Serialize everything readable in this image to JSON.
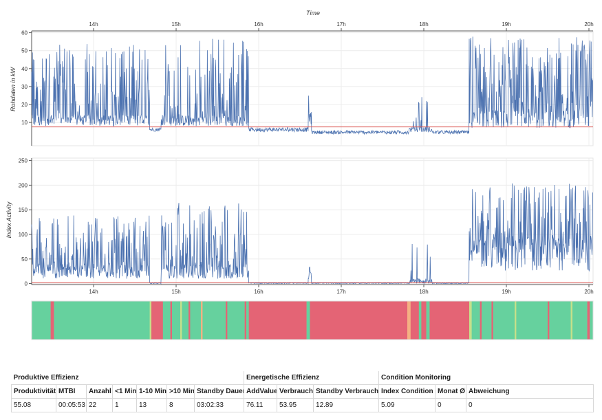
{
  "chart_data": [
    {
      "type": "line",
      "title": "",
      "xlabel": "Time",
      "ylabel": "Rohdaten in kW",
      "x_ticks": [
        "14h",
        "15h",
        "16h",
        "17h",
        "18h",
        "19h",
        "20h"
      ],
      "x_range_hours": [
        13.25,
        20.05
      ],
      "ylim": [
        -3,
        61
      ],
      "y_ticks": [
        10,
        20,
        30,
        40,
        50,
        60
      ],
      "grid": true,
      "line_color": "#4c72b0",
      "threshold": {
        "value": 7.5,
        "color": "#d9534f"
      },
      "segments": [
        {
          "start": 13.25,
          "end": 14.68,
          "base": 11,
          "noise": 3,
          "spike_rate": 0.45,
          "spike_max": 54
        },
        {
          "start": 14.68,
          "end": 14.82,
          "base": 6,
          "noise": 1,
          "spike_rate": 0.02,
          "spike_max": 8
        },
        {
          "start": 14.82,
          "end": 15.88,
          "base": 11,
          "noise": 3,
          "spike_rate": 0.4,
          "spike_max": 58
        },
        {
          "start": 15.88,
          "end": 16.6,
          "base": 6,
          "noise": 1.2,
          "spike_rate": 0.01,
          "spike_max": 8
        },
        {
          "start": 16.6,
          "end": 16.64,
          "base": 12,
          "noise": 4,
          "spike_rate": 0.4,
          "spike_max": 25
        },
        {
          "start": 16.64,
          "end": 17.82,
          "base": 4.5,
          "noise": 1,
          "spike_rate": 0.005,
          "spike_max": 6
        },
        {
          "start": 17.82,
          "end": 18.1,
          "base": 6,
          "noise": 1.5,
          "spike_rate": 0.12,
          "spike_max": 27
        },
        {
          "start": 18.1,
          "end": 18.55,
          "base": 4.5,
          "noise": 1,
          "spike_rate": 0.005,
          "spike_max": 6
        },
        {
          "start": 18.55,
          "end": 20.05,
          "base": 12,
          "noise": 5,
          "spike_rate": 0.55,
          "spike_max": 58
        }
      ]
    },
    {
      "type": "line",
      "title": "",
      "xlabel": "",
      "ylabel": "Index Activity",
      "x_ticks": [
        "14h",
        "15h",
        "16h",
        "17h",
        "18h",
        "19h",
        "20h"
      ],
      "x_range_hours": [
        13.25,
        20.05
      ],
      "ylim": [
        -2,
        255
      ],
      "y_ticks": [
        0,
        50,
        100,
        150,
        200,
        250
      ],
      "grid": true,
      "line_color": "#4c72b0",
      "threshold": {
        "value": 2,
        "color": "#d9534f"
      },
      "segments": [
        {
          "start": 13.25,
          "end": 14.68,
          "base": 25,
          "noise": 15,
          "spike_rate": 0.4,
          "spike_max": 140
        },
        {
          "start": 14.68,
          "end": 14.82,
          "base": 1,
          "noise": 1,
          "spike_rate": 0.0,
          "spike_max": 2
        },
        {
          "start": 14.82,
          "end": 15.88,
          "base": 25,
          "noise": 15,
          "spike_rate": 0.35,
          "spike_max": 165
        },
        {
          "start": 15.88,
          "end": 16.6,
          "base": 1,
          "noise": 1,
          "spike_rate": 0.0,
          "spike_max": 2
        },
        {
          "start": 16.6,
          "end": 16.64,
          "base": 10,
          "noise": 8,
          "spike_rate": 0.5,
          "spike_max": 55
        },
        {
          "start": 16.64,
          "end": 17.82,
          "base": 1,
          "noise": 1,
          "spike_rate": 0.0,
          "spike_max": 2
        },
        {
          "start": 17.82,
          "end": 18.1,
          "base": 5,
          "noise": 5,
          "spike_rate": 0.15,
          "spike_max": 85
        },
        {
          "start": 18.1,
          "end": 18.55,
          "base": 1,
          "noise": 1,
          "spike_rate": 0.0,
          "spike_max": 2
        },
        {
          "start": 18.55,
          "end": 20.05,
          "base": 60,
          "noise": 35,
          "spike_rate": 0.45,
          "spike_max": 205
        }
      ]
    },
    {
      "type": "heatmap",
      "title": "",
      "x_range_hours": [
        13.25,
        20.05
      ],
      "colors": {
        "active": "#66d19e",
        "idle": "#e46475",
        "transition": "#f4b183",
        "marginal": "#c6e08a"
      },
      "bands": [
        {
          "start": 13.25,
          "end": 13.48,
          "state": "active"
        },
        {
          "start": 13.48,
          "end": 13.52,
          "state": "idle"
        },
        {
          "start": 13.52,
          "end": 14.68,
          "state": "active"
        },
        {
          "start": 14.68,
          "end": 14.7,
          "state": "marginal"
        },
        {
          "start": 14.7,
          "end": 14.84,
          "state": "idle"
        },
        {
          "start": 14.84,
          "end": 14.93,
          "state": "active"
        },
        {
          "start": 14.93,
          "end": 14.95,
          "state": "idle"
        },
        {
          "start": 14.95,
          "end": 15.05,
          "state": "active"
        },
        {
          "start": 15.05,
          "end": 15.07,
          "state": "marginal"
        },
        {
          "start": 15.07,
          "end": 15.15,
          "state": "active"
        },
        {
          "start": 15.15,
          "end": 15.17,
          "state": "idle"
        },
        {
          "start": 15.17,
          "end": 15.3,
          "state": "active"
        },
        {
          "start": 15.3,
          "end": 15.32,
          "state": "transition"
        },
        {
          "start": 15.32,
          "end": 15.6,
          "state": "active"
        },
        {
          "start": 15.6,
          "end": 15.62,
          "state": "idle"
        },
        {
          "start": 15.62,
          "end": 15.83,
          "state": "active"
        },
        {
          "start": 15.83,
          "end": 15.85,
          "state": "idle"
        },
        {
          "start": 15.85,
          "end": 15.88,
          "state": "active"
        },
        {
          "start": 15.88,
          "end": 16.58,
          "state": "idle"
        },
        {
          "start": 16.58,
          "end": 16.62,
          "state": "active"
        },
        {
          "start": 16.62,
          "end": 17.8,
          "state": "idle"
        },
        {
          "start": 17.8,
          "end": 17.84,
          "state": "transition"
        },
        {
          "start": 17.84,
          "end": 17.94,
          "state": "idle"
        },
        {
          "start": 17.94,
          "end": 17.97,
          "state": "active"
        },
        {
          "start": 17.97,
          "end": 18.03,
          "state": "idle"
        },
        {
          "start": 18.03,
          "end": 18.07,
          "state": "active"
        },
        {
          "start": 18.07,
          "end": 18.55,
          "state": "idle"
        },
        {
          "start": 18.55,
          "end": 18.58,
          "state": "marginal"
        },
        {
          "start": 18.58,
          "end": 18.68,
          "state": "active"
        },
        {
          "start": 18.68,
          "end": 18.7,
          "state": "idle"
        },
        {
          "start": 18.7,
          "end": 18.82,
          "state": "active"
        },
        {
          "start": 18.82,
          "end": 18.84,
          "state": "idle"
        },
        {
          "start": 18.84,
          "end": 19.1,
          "state": "active"
        },
        {
          "start": 19.1,
          "end": 19.12,
          "state": "marginal"
        },
        {
          "start": 19.12,
          "end": 19.5,
          "state": "active"
        },
        {
          "start": 19.5,
          "end": 19.52,
          "state": "idle"
        },
        {
          "start": 19.52,
          "end": 19.78,
          "state": "active"
        },
        {
          "start": 19.78,
          "end": 19.8,
          "state": "marginal"
        },
        {
          "start": 19.8,
          "end": 19.98,
          "state": "active"
        },
        {
          "start": 19.98,
          "end": 20.01,
          "state": "idle"
        },
        {
          "start": 20.01,
          "end": 20.05,
          "state": "active"
        }
      ]
    }
  ],
  "kpi_table": {
    "groups": [
      "Produktive Effizienz",
      "Energetische Effizienz",
      "Condition Monitoring"
    ],
    "columns": [
      "Produktivität",
      "MTBI",
      "Anzahl",
      "<1 Min",
      "1-10 Min",
      ">10 Min",
      "Standby Dauer",
      "AddValue",
      "Verbrauch",
      "Standby Verbrauch",
      "Index Condition",
      "Monat Ø",
      "Abweichung"
    ],
    "values": [
      "55.08",
      "00:05:53",
      "22",
      "1",
      "13",
      "8",
      "03:02:33",
      "76.11",
      "53.95",
      "12.89",
      "5.09",
      "0",
      "0"
    ]
  }
}
